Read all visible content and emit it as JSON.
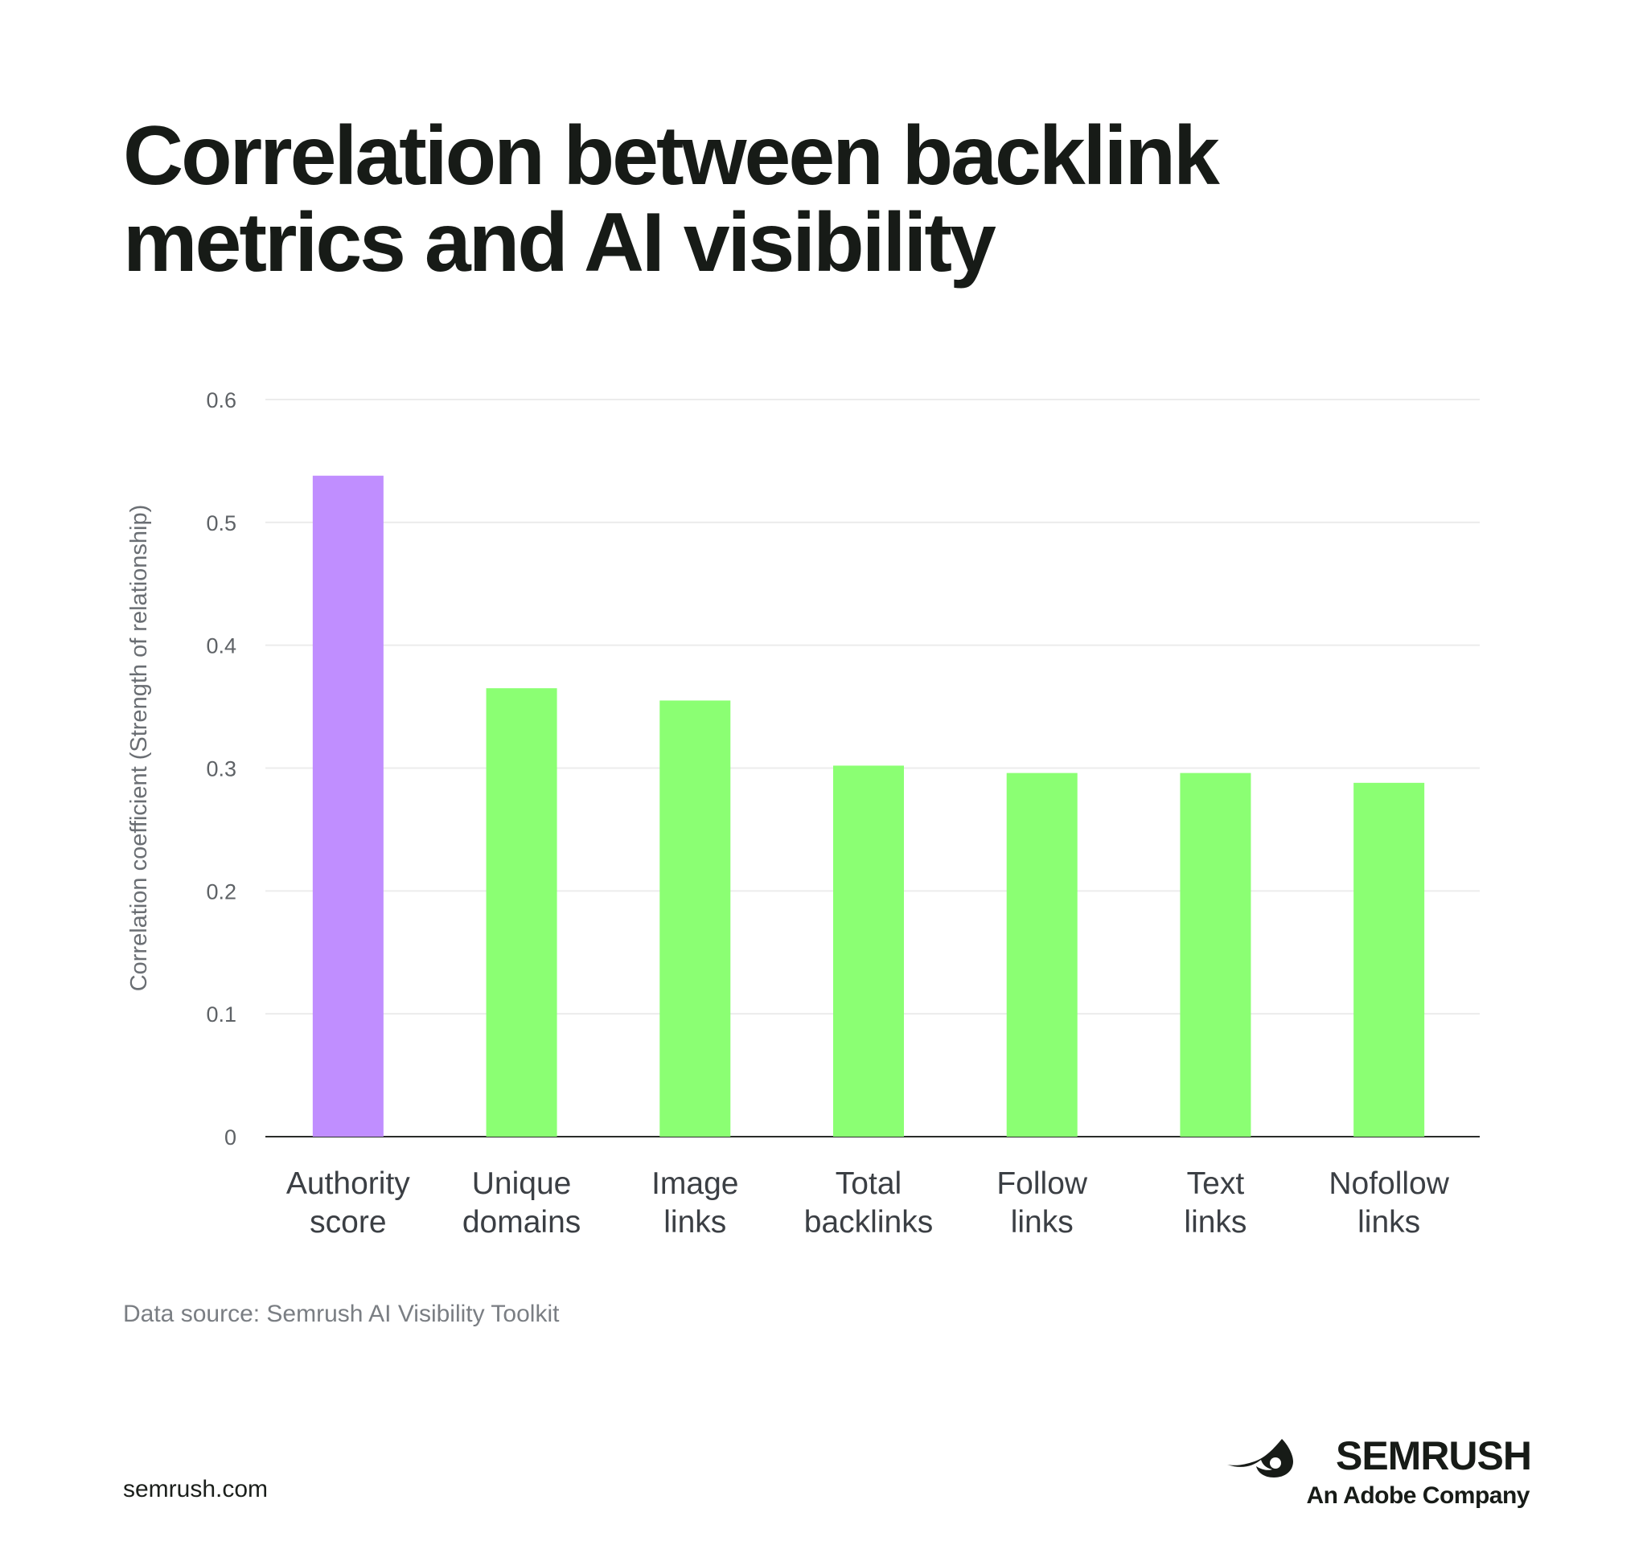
{
  "chart_data": {
    "type": "bar",
    "title": "Correlation between backlink metrics and AI visibility",
    "title_lines": [
      "Correlation between backlink",
      "metrics and AI visibility"
    ],
    "xlabel": "",
    "ylabel": "Correlation coefficient (Strength of relationship)",
    "ylim": [
      0,
      0.6
    ],
    "yticks": [
      "0",
      "0.1",
      "0.2",
      "0.3",
      "0.4",
      "0.5",
      "0.6"
    ],
    "grid": true,
    "legend": "none",
    "categories": [
      [
        "Authority",
        "score"
      ],
      [
        "Unique",
        "domains"
      ],
      [
        "Image",
        "links"
      ],
      [
        "Total",
        "backlinks"
      ],
      [
        "Follow",
        "links"
      ],
      [
        "Text",
        "links"
      ],
      [
        "Nofollow",
        "links"
      ]
    ],
    "values": [
      0.538,
      0.365,
      0.355,
      0.302,
      0.296,
      0.296,
      0.288
    ],
    "highlight_index": 0,
    "colors": {
      "highlight": "#c08eff",
      "default": "#8bff73",
      "grid": "#ececec",
      "axis": "#2a2d2a"
    }
  },
  "footer": {
    "source": "Data source: Semrush AI Visibility Toolkit",
    "website": "semrush.com",
    "brand_name": "SEMRUSH",
    "brand_tagline": "An Adobe Company",
    "brand_icon": "semrush-flame-icon"
  }
}
